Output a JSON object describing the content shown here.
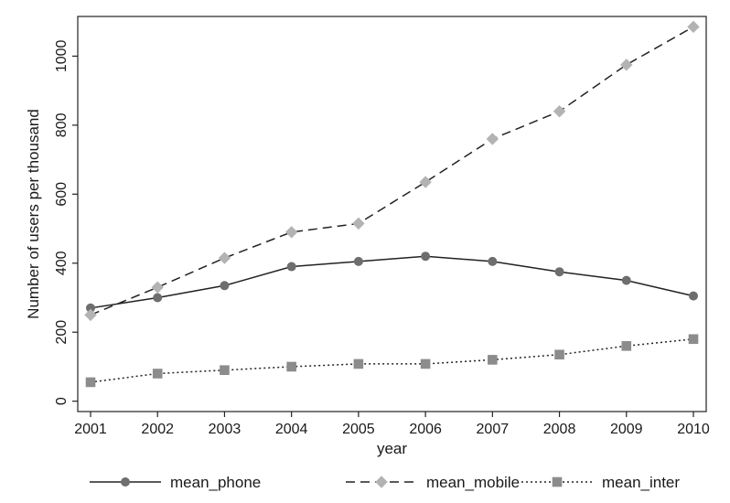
{
  "chart_data": {
    "type": "line",
    "title": "",
    "xlabel": "year",
    "ylabel": "Number of users per thousand",
    "x": [
      2001,
      2002,
      2003,
      2004,
      2005,
      2006,
      2007,
      2008,
      2009,
      2010
    ],
    "xlim": [
      2001,
      2010
    ],
    "ylim": [
      -30,
      1115
    ],
    "yticks": [
      0,
      200,
      400,
      600,
      800,
      1000
    ],
    "grid": false,
    "legend_position": "bottom",
    "series": [
      {
        "name": "mean_phone",
        "values": [
          270,
          300,
          335,
          390,
          405,
          420,
          405,
          375,
          350,
          305
        ],
        "line_style": "solid",
        "marker": "circle",
        "color": "#222222",
        "marker_color": "#6e6e6e"
      },
      {
        "name": "mean_mobile",
        "values": [
          250,
          330,
          415,
          490,
          515,
          635,
          760,
          840,
          975,
          1085
        ],
        "line_style": "dashed",
        "marker": "diamond",
        "color": "#222222",
        "marker_color": "#b3b3b3"
      },
      {
        "name": "mean_inter",
        "values": [
          55,
          80,
          90,
          100,
          108,
          108,
          120,
          135,
          160,
          180
        ],
        "line_style": "dotted",
        "marker": "square",
        "color": "#222222",
        "marker_color": "#8c8c8c"
      }
    ]
  }
}
